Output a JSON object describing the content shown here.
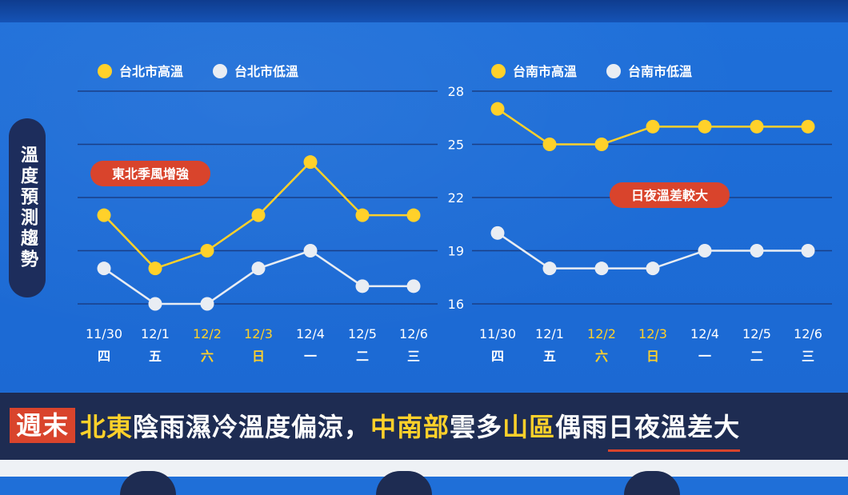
{
  "side_label": "溫度預測趨勢",
  "colors": {
    "high": "#ffd12a",
    "low": "#e9edf3",
    "grid": "#1a3f86",
    "badge": "#d9442c"
  },
  "chart_data": [
    {
      "type": "line",
      "legend": [
        {
          "name": "台北市高溫",
          "color": "#ffd12a"
        },
        {
          "name": "台北市低溫",
          "color": "#e9edf3"
        }
      ],
      "x": [
        "11/30",
        "12/1",
        "12/2",
        "12/3",
        "12/4",
        "12/5",
        "12/6"
      ],
      "weekdays": [
        "四",
        "五",
        "六",
        "日",
        "一",
        "二",
        "三"
      ],
      "series": [
        {
          "name": "台北市高溫",
          "values": [
            21,
            18,
            19,
            21,
            24,
            21,
            21
          ]
        },
        {
          "name": "台北市低溫",
          "values": [
            18,
            16,
            16,
            18,
            19,
            17,
            17
          ]
        }
      ],
      "ylim": [
        16,
        28
      ],
      "yticks": [],
      "annotation": "東北季風增強"
    },
    {
      "type": "line",
      "legend": [
        {
          "name": "台南市高溫",
          "color": "#ffd12a"
        },
        {
          "name": "台南市低溫",
          "color": "#e9edf3"
        }
      ],
      "x": [
        "11/30",
        "12/1",
        "12/2",
        "12/3",
        "12/4",
        "12/5",
        "12/6"
      ],
      "weekdays": [
        "四",
        "五",
        "六",
        "日",
        "一",
        "二",
        "三"
      ],
      "series": [
        {
          "name": "台南市高溫",
          "values": [
            27,
            25,
            25,
            26,
            26,
            26,
            26
          ]
        },
        {
          "name": "台南市低溫",
          "values": [
            20,
            18,
            18,
            18,
            19,
            19,
            19
          ]
        }
      ],
      "ylim": [
        16,
        28
      ],
      "yticks": [
        "28",
        "25",
        "22",
        "19",
        "16"
      ],
      "annotation": "日夜溫差較大"
    }
  ],
  "headline": {
    "tag": "週末",
    "p1": "北東",
    "p2": "陰雨濕冷溫度偏涼，",
    "p3": "中南部",
    "p4": "雲多",
    "p5": "山區",
    "p6": "偶雨",
    "p7": "日夜溫差大"
  }
}
